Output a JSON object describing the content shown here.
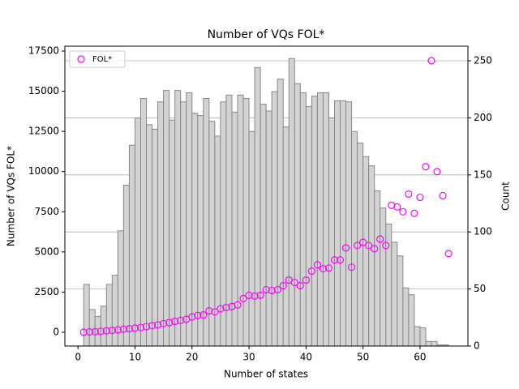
{
  "chart_data": {
    "type": "combo",
    "title": "Number of VQs FOL*",
    "x_label": "Number of states",
    "y_label": "Number of VQs FOL*",
    "y2_label": "Count",
    "xlim": [
      -2.3,
      68.4
    ],
    "xticks": [
      0,
      10,
      20,
      30,
      40,
      50,
      60
    ],
    "ylim": [
      -857,
      17803
    ],
    "yticks": [
      0,
      2500,
      5000,
      7500,
      10000,
      12500,
      15000,
      17500
    ],
    "y2lim": [
      0,
      262.8
    ],
    "y2ticks": [
      0,
      50,
      100,
      150,
      200,
      250
    ],
    "grid": "y2",
    "legend": "upper left",
    "histogram": {
      "type": "histogram",
      "axis": "y2",
      "color": "#d3d3d3",
      "edgecolor": "#888888",
      "bins": [
        1,
        2,
        3,
        4,
        5,
        6,
        7,
        8,
        9,
        10,
        11,
        12,
        13,
        14,
        15,
        16,
        17,
        18,
        19,
        20,
        21,
        22,
        23,
        24,
        25,
        26,
        27,
        28,
        29,
        30,
        31,
        32,
        33,
        34,
        35,
        36,
        37,
        38,
        39,
        40,
        41,
        42,
        43,
        44,
        45,
        46,
        47,
        48,
        49,
        50,
        51,
        52,
        53,
        54,
        55,
        56,
        57,
        58,
        59,
        60,
        61,
        62,
        63,
        64,
        65
      ],
      "counts": [
        54,
        32,
        26,
        35,
        54,
        62,
        101,
        141,
        176,
        200,
        217,
        194,
        190,
        214,
        224,
        198,
        224,
        214,
        222,
        204,
        202,
        217,
        197,
        184,
        214,
        220,
        205,
        220,
        217,
        188,
        244,
        212,
        206,
        223,
        234,
        192,
        252,
        230,
        222,
        210,
        219,
        222,
        222,
        200,
        215,
        215,
        214,
        188,
        178,
        166,
        158,
        136,
        121,
        107,
        91,
        79,
        51,
        45,
        17,
        16,
        4,
        4,
        1,
        1
      ]
    },
    "series": [
      {
        "name": "FOL*",
        "type": "scatter",
        "color": "#ff00ff",
        "x": [
          1,
          2,
          3,
          4,
          5,
          6,
          7,
          8,
          9,
          10,
          11,
          12,
          13,
          14,
          15,
          16,
          17,
          18,
          19,
          20,
          21,
          22,
          23,
          24,
          25,
          26,
          27,
          28,
          29,
          30,
          31,
          32,
          33,
          34,
          35,
          36,
          37,
          38,
          39,
          40,
          41,
          42,
          43,
          44,
          45,
          46,
          47,
          48,
          49,
          50,
          51,
          52,
          53,
          54,
          55,
          56,
          57,
          58,
          59,
          60,
          61,
          62,
          63,
          64,
          65
        ],
        "values": [
          0,
          20,
          40,
          60,
          90,
          120,
          150,
          190,
          220,
          260,
          300,
          350,
          410,
          460,
          540,
          600,
          680,
          740,
          810,
          960,
          1050,
          1080,
          1330,
          1270,
          1460,
          1540,
          1600,
          1700,
          2100,
          2300,
          2250,
          2300,
          2650,
          2600,
          2650,
          2900,
          3250,
          3100,
          2900,
          3250,
          3800,
          4200,
          3950,
          4000,
          4500,
          4500,
          5250,
          4050,
          5400,
          5600,
          5400,
          5200,
          5800,
          5400,
          7900,
          7800,
          7500,
          8600,
          7400,
          8400,
          10300,
          16900,
          10000,
          8500,
          4900
        ]
      }
    ]
  }
}
